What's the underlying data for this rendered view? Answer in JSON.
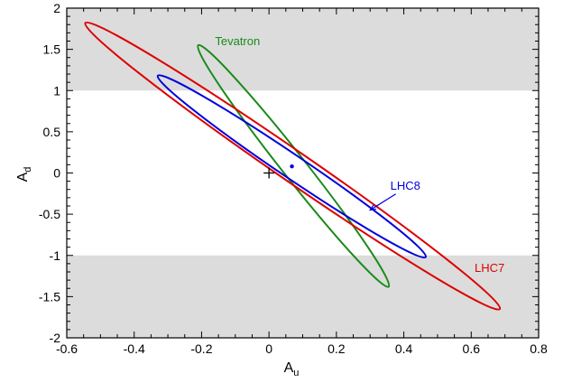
{
  "chart_data": {
    "type": "scatter",
    "title": "",
    "xlabel": "A",
    "xlabel_subscript": "u",
    "ylabel": "A",
    "ylabel_subscript": "d",
    "xlim": [
      -0.6,
      0.8
    ],
    "ylim": [
      -2,
      2
    ],
    "x_ticks": [
      -0.6,
      -0.4,
      -0.2,
      0,
      0.2,
      0.4,
      0.6,
      0.8
    ],
    "x_tick_labels": [
      "-0.6",
      "-0.4",
      "-0.2",
      "0",
      "0.2",
      "0.4",
      "0.6",
      "0.8"
    ],
    "y_ticks": [
      -2,
      -1.5,
      -1,
      -0.5,
      0,
      0.5,
      1,
      1.5,
      2
    ],
    "y_tick_labels": [
      "-2",
      "-1.5",
      "-1",
      "-0.5",
      "0",
      "0.5",
      "1",
      "1.5",
      "2"
    ],
    "grid": false,
    "shaded_bands": [
      {
        "y_from": 1,
        "y_to": 2,
        "color": "#dcdcdc"
      },
      {
        "y_from": -2,
        "y_to": -1,
        "color": "#dcdcdc"
      }
    ],
    "series": [
      {
        "name": "Tevatron",
        "color": "#1a8a1a",
        "shape": "ellipse",
        "extent_endpoints": [
          [
            -0.21,
            1.55
          ],
          [
            0.355,
            -1.38
          ]
        ]
      },
      {
        "name": "LHC8",
        "color": "#0000dd",
        "shape": "ellipse",
        "extent_endpoints": [
          [
            -0.33,
            1.18
          ],
          [
            0.465,
            -1.02
          ]
        ],
        "best_fit": [
          0.068,
          0.08
        ]
      },
      {
        "name": "LHC7",
        "color": "#dd0000",
        "shape": "ellipse",
        "extent_endpoints": [
          [
            -0.545,
            1.82
          ],
          [
            0.685,
            -1.65
          ]
        ]
      }
    ],
    "reference_marker": {
      "symbol": "+",
      "x": 0,
      "y": 0
    },
    "annotations": [
      {
        "text": "Tevatron",
        "x": -0.16,
        "y": 1.55,
        "color": "#1a8a1a"
      },
      {
        "text": "LHC8",
        "x": 0.36,
        "y": -0.2,
        "color": "#0000dd",
        "arrow_to": [
          0.3,
          -0.45
        ]
      },
      {
        "text": "LHC7",
        "x": 0.61,
        "y": -1.2,
        "color": "#dd0000"
      }
    ]
  }
}
